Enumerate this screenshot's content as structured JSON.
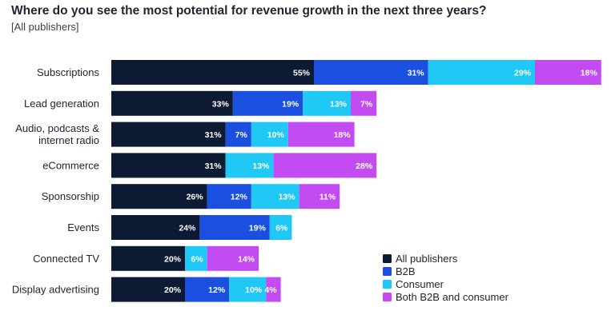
{
  "chart_data": {
    "type": "bar",
    "orientation": "horizontal",
    "stacked": true,
    "title": "Where do you see the most potential for revenue growth in the next three years?",
    "subtitle": "[All publishers]",
    "categories": [
      [
        "Subscriptions"
      ],
      [
        "Lead generation"
      ],
      [
        "Audio, podcasts &",
        "internet radio"
      ],
      [
        "eCommerce"
      ],
      [
        "Sponsorship"
      ],
      [
        "Events"
      ],
      [
        "Connected TV"
      ],
      [
        "Display advertising"
      ]
    ],
    "series": [
      {
        "name": "All publishers",
        "color": "#0c1b33",
        "label_color": "#ffffff",
        "values": [
          55,
          33,
          31,
          31,
          26,
          24,
          20,
          20
        ]
      },
      {
        "name": "B2B",
        "color": "#1a4fe0",
        "label_color": "#ffffff",
        "values": [
          31,
          19,
          7,
          0,
          12,
          19,
          0,
          12
        ]
      },
      {
        "name": "Consumer",
        "color": "#1fc8f5",
        "label_color": "#ffffff",
        "values": [
          29,
          13,
          10,
          13,
          13,
          6,
          6,
          10
        ]
      },
      {
        "name": "Both B2B and consumer",
        "color": "#c24cf2",
        "label_color": "#ffffff",
        "values": [
          18,
          7,
          18,
          28,
          11,
          0,
          14,
          4
        ]
      }
    ],
    "value_suffix": "%",
    "legend_position": "bottom-right",
    "grid": false
  }
}
